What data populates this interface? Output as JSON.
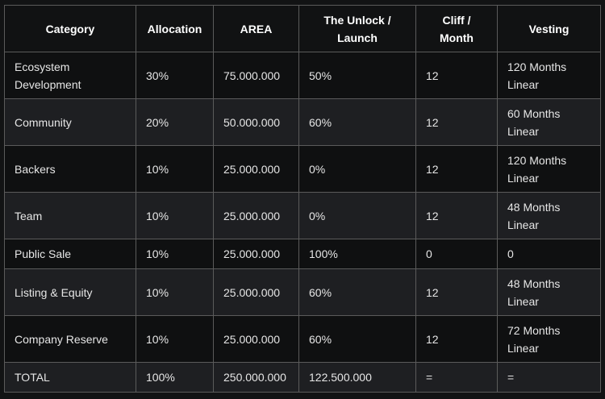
{
  "table": {
    "headers": {
      "category": "Category",
      "allocation": "Allocation",
      "area": "AREA",
      "unlock_line1": "The Unlock /",
      "unlock_line2": "Launch",
      "cliff_line1": "Cliff /",
      "cliff_line2": "Month",
      "vesting": "Vesting"
    },
    "rows": [
      {
        "category_l1": "Ecosystem",
        "category_l2": "Development",
        "allocation": "30%",
        "area": "75.000.000",
        "unlock": "50%",
        "cliff": "12",
        "vesting_l1": "120 Months",
        "vesting_l2": "Linear"
      },
      {
        "category_l1": "Community",
        "category_l2": "",
        "allocation": "20%",
        "area": "50.000.000",
        "unlock": "60%",
        "cliff": "12",
        "vesting_l1": "60 Months",
        "vesting_l2": "Linear"
      },
      {
        "category_l1": "Backers",
        "category_l2": "",
        "allocation": "10%",
        "area": "25.000.000",
        "unlock": "0%",
        "cliff": "12",
        "vesting_l1": "120 Months",
        "vesting_l2": "Linear"
      },
      {
        "category_l1": "Team",
        "category_l2": "",
        "allocation": "10%",
        "area": "25.000.000",
        "unlock": "0%",
        "cliff": "12",
        "vesting_l1": "48 Months",
        "vesting_l2": "Linear"
      },
      {
        "category_l1": "Public Sale",
        "category_l2": "",
        "allocation": "10%",
        "area": "25.000.000",
        "unlock": "100%",
        "cliff": "0",
        "vesting_l1": "0",
        "vesting_l2": ""
      },
      {
        "category_l1": "Listing & Equity",
        "category_l2": "",
        "allocation": "10%",
        "area": "25.000.000",
        "unlock": "60%",
        "cliff": "12",
        "vesting_l1": "48 Months",
        "vesting_l2": "Linear"
      },
      {
        "category_l1": "Company Reserve",
        "category_l2": "",
        "allocation": "10%",
        "area": "25.000.000",
        "unlock": "60%",
        "cliff": "12",
        "vesting_l1": "72 Months",
        "vesting_l2": "Linear"
      },
      {
        "category_l1": "TOTAL",
        "category_l2": "",
        "allocation": "100%",
        "area": "250.000.000",
        "unlock": "122.500.000",
        "cliff": "=",
        "vesting_l1": "=",
        "vesting_l2": ""
      }
    ]
  }
}
